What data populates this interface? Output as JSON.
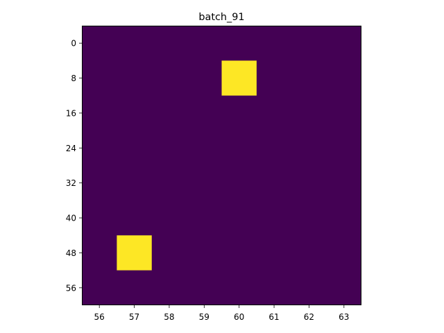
{
  "chart_data": {
    "type": "heatmap",
    "title": "batch_91",
    "xlabel": "",
    "ylabel": "",
    "x_ticks": [
      56,
      57,
      58,
      59,
      60,
      61,
      62,
      63
    ],
    "y_ticks": [
      0,
      8,
      16,
      24,
      32,
      40,
      48,
      56
    ],
    "xlim": [
      55.5,
      63.5
    ],
    "ylim": [
      60,
      -4
    ],
    "y_inverted": true,
    "colormap": "viridis",
    "background_value": 0,
    "background_color": "#440154",
    "highlight_color": "#fde725",
    "cells": [
      {
        "x": 60,
        "y": 8,
        "value": 1,
        "y_extent": [
          4,
          12
        ]
      },
      {
        "x": 57,
        "y": 48,
        "value": 1,
        "y_extent": [
          44,
          52
        ]
      }
    ]
  }
}
